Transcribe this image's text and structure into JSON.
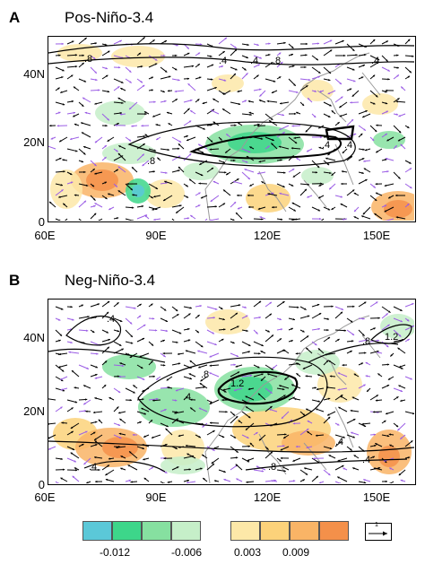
{
  "panels": [
    {
      "letter": "A",
      "title": "Pos-Niño-3.4",
      "contour_labels": [
        ".8",
        ".4",
        ".4",
        ".8",
        ".4",
        ".8",
        ".4",
        ".4"
      ]
    },
    {
      "letter": "B",
      "title": "Neg-Niño-3.4",
      "contour_labels": [
        ".4",
        ".8",
        "1.2",
        ".4",
        ".8",
        "1.2",
        ".4",
        ".4",
        ".8",
        ".4"
      ]
    }
  ],
  "axes": {
    "lat_ticks": [
      "40N",
      "20N",
      "0"
    ],
    "lon_ticks": [
      "60E",
      "90E",
      "120E",
      "150E"
    ]
  },
  "colorbar": {
    "colors": [
      "#5bc8d8",
      "#3dd68a",
      "#86e0a0",
      "#c6efc9",
      "#ffffff",
      "#fde8a8",
      "#fcd27a",
      "#f9b466",
      "#f4904a"
    ],
    "tick_labels": [
      "-0.012",
      "-0.006",
      "0.003",
      "0.009"
    ],
    "vector_reference": "1"
  },
  "colors": {
    "positive_anomaly": "#f9b466",
    "negative_anomaly": "#3dd68a",
    "significant_vector": "#9b5de5",
    "vector": "#000000",
    "coastline": "#9a9a9a"
  }
}
